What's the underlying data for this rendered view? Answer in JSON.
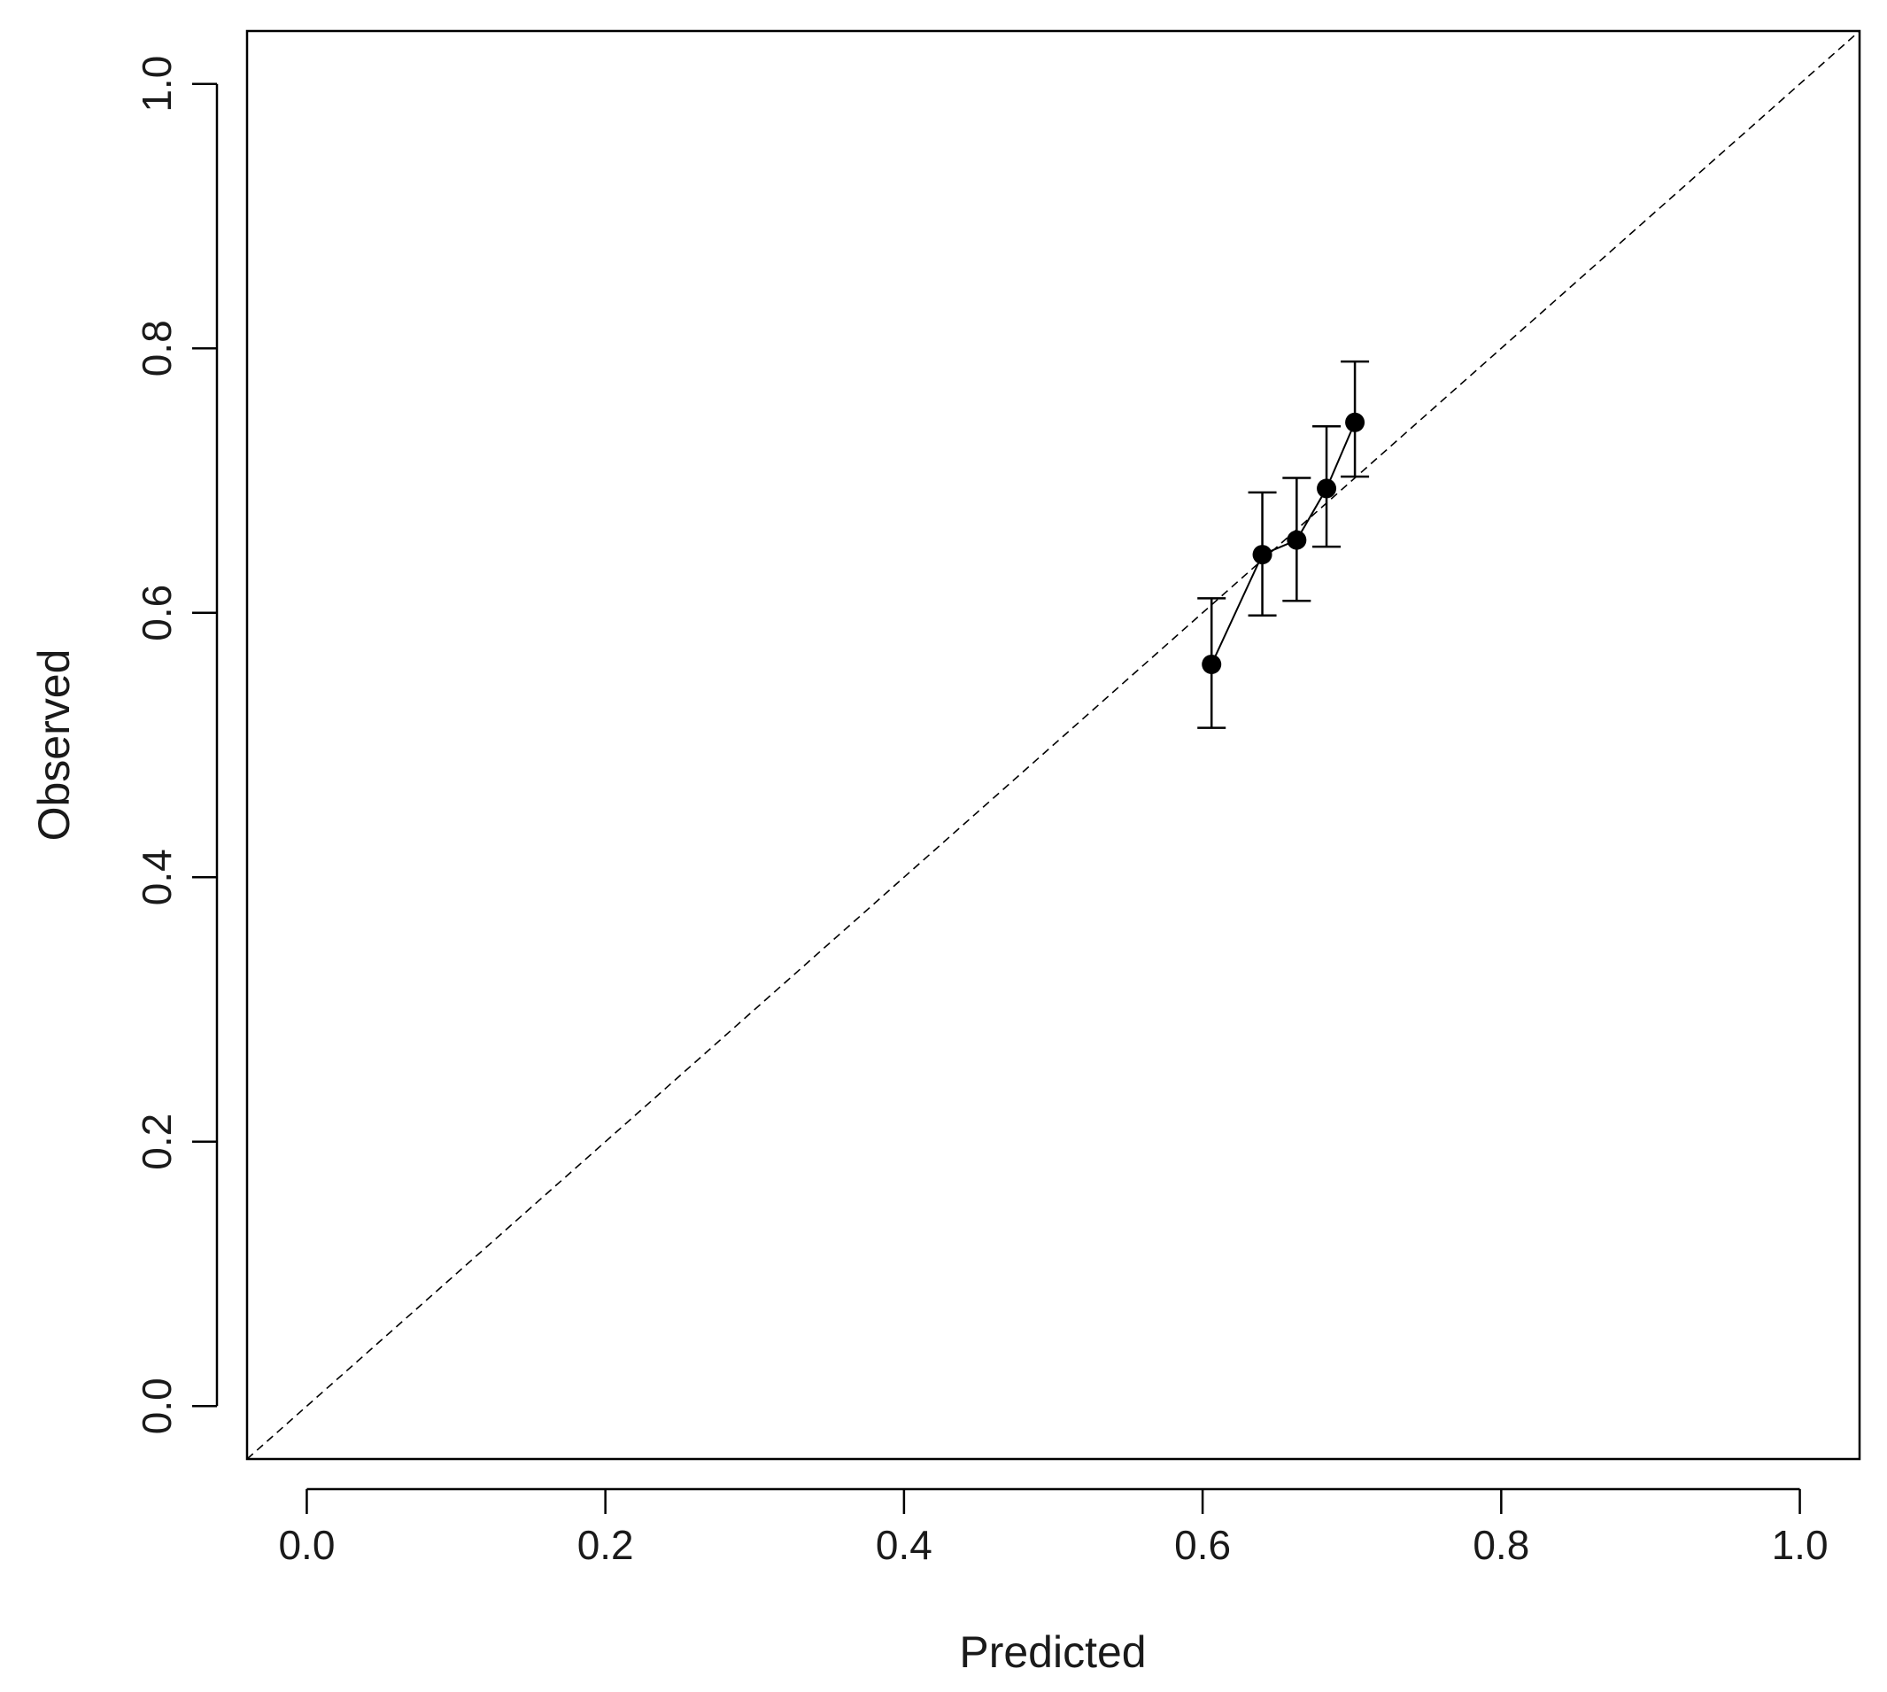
{
  "chart_data": {
    "type": "scatter",
    "title": "",
    "xlabel": "Predicted",
    "ylabel": "Observed",
    "xlim": [
      -0.04,
      1.04
    ],
    "ylim": [
      -0.04,
      1.04
    ],
    "x_ticks": [
      0.0,
      0.2,
      0.4,
      0.6,
      0.8,
      1.0
    ],
    "y_ticks": [
      0.0,
      0.2,
      0.4,
      0.6,
      0.8,
      1.0
    ],
    "x_tick_labels": [
      "0.0",
      "0.2",
      "0.4",
      "0.6",
      "0.8",
      "1.0"
    ],
    "y_tick_labels": [
      "0.0",
      "0.2",
      "0.4",
      "0.6",
      "0.8",
      "1.0"
    ],
    "grid": false,
    "reference_line": {
      "type": "identity",
      "style": "dashed"
    },
    "series": [
      {
        "points": [
          {
            "x": 0.606,
            "y": 0.561,
            "lower": 0.513,
            "upper": 0.611
          },
          {
            "x": 0.64,
            "y": 0.644,
            "lower": 0.598,
            "upper": 0.691
          },
          {
            "x": 0.663,
            "y": 0.655,
            "lower": 0.609,
            "upper": 0.702
          },
          {
            "x": 0.683,
            "y": 0.694,
            "lower": 0.65,
            "upper": 0.741
          },
          {
            "x": 0.702,
            "y": 0.744,
            "lower": 0.703,
            "upper": 0.79
          }
        ],
        "connect": true,
        "color": "#000000"
      }
    ]
  }
}
